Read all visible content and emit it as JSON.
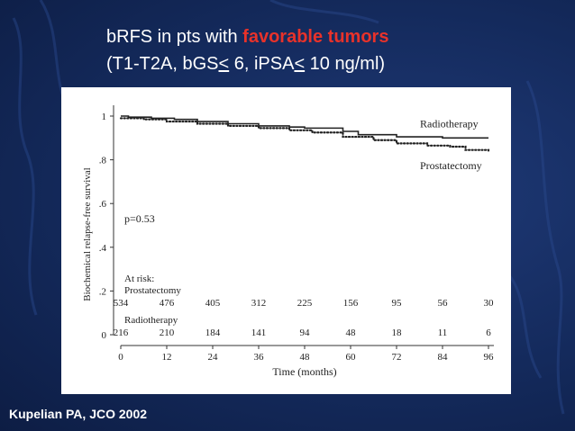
{
  "slide": {
    "title_pre": "bRFS in pts with ",
    "title_highlight": "favorable tumors",
    "subtitle_a": "(T1-T2A, bGS",
    "lte_symbol": "<",
    "subtitle_b": " 6, iPSA",
    "subtitle_c": " 10 ng/ml)",
    "citation": "Kupelian PA, JCO 2002",
    "background_color": "#142a5c",
    "highlight_color": "#e8322a"
  },
  "chart_data": {
    "type": "line",
    "title": "",
    "xlabel": "Time (months)",
    "ylabel": "Biochemical relapse-free survival",
    "xlim": [
      0,
      96
    ],
    "ylim": [
      0,
      1
    ],
    "x_ticks": [
      0,
      12,
      24,
      36,
      48,
      60,
      72,
      84,
      96
    ],
    "y_ticks": [
      {
        "v": 0,
        "label": "0"
      },
      {
        "v": 0.2,
        "label": ".2"
      },
      {
        "v": 0.4,
        "label": ".4"
      },
      {
        "v": 0.6,
        "label": ".6"
      },
      {
        "v": 0.8,
        "label": ".8"
      },
      {
        "v": 1,
        "label": "1"
      }
    ],
    "grid": false,
    "annotation": "p=0.53",
    "series": [
      {
        "name": "Radiotherapy",
        "style": "solid",
        "points": [
          [
            0,
            1.0
          ],
          [
            2,
            0.995
          ],
          [
            8,
            0.99
          ],
          [
            14,
            0.985
          ],
          [
            20,
            0.975
          ],
          [
            28,
            0.965
          ],
          [
            36,
            0.955
          ],
          [
            44,
            0.95
          ],
          [
            48,
            0.945
          ],
          [
            58,
            0.93
          ],
          [
            62,
            0.915
          ],
          [
            72,
            0.905
          ],
          [
            84,
            0.9
          ],
          [
            96,
            0.9
          ]
        ]
      },
      {
        "name": "Prostatectomy",
        "style": "dotted",
        "points": [
          [
            0,
            0.99
          ],
          [
            6,
            0.985
          ],
          [
            12,
            0.975
          ],
          [
            20,
            0.965
          ],
          [
            28,
            0.955
          ],
          [
            36,
            0.945
          ],
          [
            44,
            0.935
          ],
          [
            50,
            0.925
          ],
          [
            58,
            0.905
          ],
          [
            66,
            0.89
          ],
          [
            72,
            0.875
          ],
          [
            80,
            0.865
          ],
          [
            86,
            0.86
          ],
          [
            90,
            0.845
          ],
          [
            96,
            0.835
          ]
        ]
      }
    ],
    "at_risk": {
      "label": "At risk:",
      "groups": [
        {
          "name": "Prostatectomy",
          "values": [
            "534",
            "476",
            "405",
            "312",
            "225",
            "156",
            "95",
            "56",
            "30"
          ]
        },
        {
          "name": "Radiotherapy",
          "values": [
            "216",
            "210",
            "184",
            "141",
            "94",
            "48",
            "18",
            "11",
            "6"
          ]
        }
      ]
    }
  }
}
